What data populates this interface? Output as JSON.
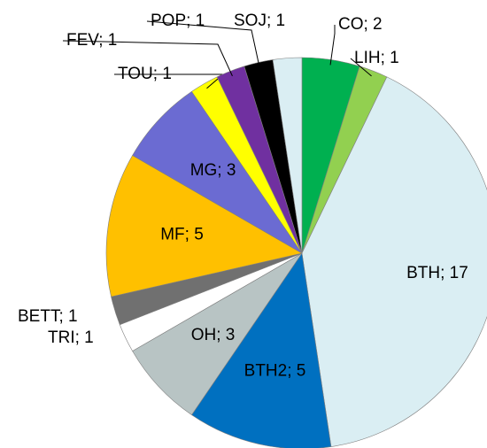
{
  "chart_data": {
    "type": "pie",
    "values": [
      2,
      1,
      17,
      5,
      3,
      1,
      1,
      5,
      3,
      1,
      1,
      1,
      1
    ],
    "value_labels": [
      "CO; 2",
      "LIH; 1",
      "BTH; 17",
      "BTH2; 5",
      "OH; 3",
      "TRI; 1",
      "BETT; 1",
      "MF; 5",
      "MG; 3",
      "TOU; 1",
      "FEV; 1",
      "POP; 1",
      "SOJ; 1"
    ],
    "colors": [
      "#00b050",
      "#92d050",
      "#daeef3",
      "#0070c0",
      "#b8c4c4",
      "#ffffff",
      "#707070",
      "#ffc000",
      "#6b6bd2",
      "#ffff00",
      "#7030a0",
      "#000000",
      "#daeef3"
    ]
  }
}
